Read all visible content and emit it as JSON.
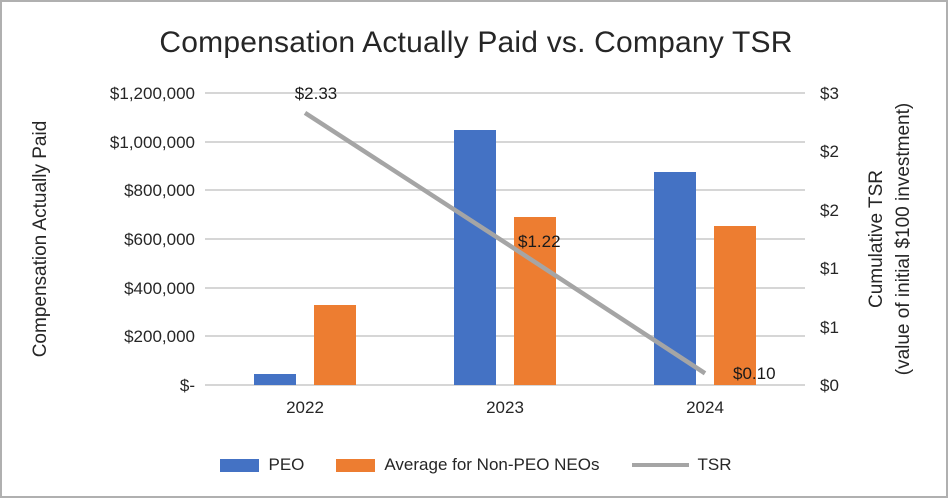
{
  "chart_data": {
    "type": "bar+line combo",
    "title": "Compensation Actually Paid vs. Company TSR",
    "categories": [
      "2022",
      "2023",
      "2024"
    ],
    "bar_series": [
      {
        "name": "PEO",
        "color": "#4472C4",
        "values": [
          45000,
          1050000,
          875000
        ]
      },
      {
        "name": "Average for Non-PEO NEOs",
        "color": "#ED7D31",
        "values": [
          330000,
          690000,
          655000
        ]
      }
    ],
    "line_series": {
      "name": "TSR",
      "color": "#A5A5A5",
      "values": [
        2.33,
        1.22,
        0.1
      ],
      "data_labels": [
        "$2.33",
        "$1.22",
        "$0.10"
      ]
    },
    "left_axis": {
      "title": "Compensation Actually Paid",
      "min": 0,
      "max": 1200000,
      "tick_labels": [
        "$1,200,000",
        "$1,000,000",
        "$800,000",
        "$600,000",
        "$400,000",
        "$200,000",
        "$-"
      ]
    },
    "right_axis": {
      "title_line1": "Cumulative TSR",
      "title_line2": "(value of initial $100 investment)",
      "min": 0,
      "max": 2.5,
      "tick_values": [
        2.5,
        2.0,
        1.5,
        1.0,
        0.5,
        0
      ],
      "tick_labels": [
        "$3",
        "$2",
        "$2",
        "$1",
        "$1",
        "$0"
      ]
    },
    "legend": [
      {
        "label": "PEO",
        "type": "box",
        "color": "#4472C4"
      },
      {
        "label": "Average for Non-PEO NEOs",
        "type": "box",
        "color": "#ED7D31"
      },
      {
        "label": "TSR",
        "type": "line",
        "color": "#A5A5A5"
      }
    ],
    "grid": "horizontal",
    "gridline_color": "#d6d6d6"
  }
}
